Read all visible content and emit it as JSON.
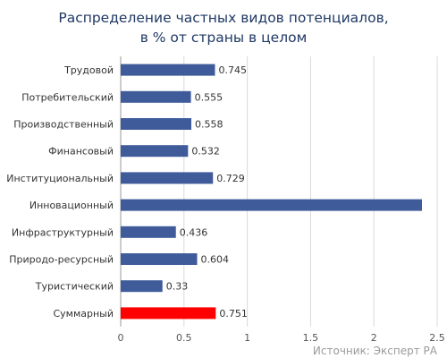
{
  "chart_data": {
    "type": "bar",
    "orientation": "horizontal",
    "title_lines": [
      "Распределение частных видов потенциалов,",
      "в % от страны в целом"
    ],
    "categories": [
      "Трудовой",
      "Потребительский",
      "Производственный",
      "Финансовый",
      "Институциональный",
      "Инновационный",
      "Инфраструктурный",
      "Природо-ресурсный",
      "Туристический",
      "Суммарный"
    ],
    "values": [
      0.745,
      0.555,
      0.558,
      0.532,
      0.729,
      2.38,
      0.436,
      0.604,
      0.33,
      0.751
    ],
    "value_labels": [
      "0.745",
      "0.555",
      "0.558",
      "0.532",
      "0.729",
      "",
      "0.436",
      "0.604",
      "0.33",
      "0.751"
    ],
    "bar_colors": [
      "#3f5b9a",
      "#3f5b9a",
      "#3f5b9a",
      "#3f5b9a",
      "#3f5b9a",
      "#3f5b9a",
      "#3f5b9a",
      "#3f5b9a",
      "#3f5b9a",
      "#ff0000"
    ],
    "xlim": [
      0,
      2.5
    ],
    "x_ticks": [
      "0",
      "0.5",
      "1",
      "1.5",
      "2",
      "2.5"
    ],
    "grid": true,
    "legend": "none",
    "source": "Источник: Эксперт РА"
  }
}
